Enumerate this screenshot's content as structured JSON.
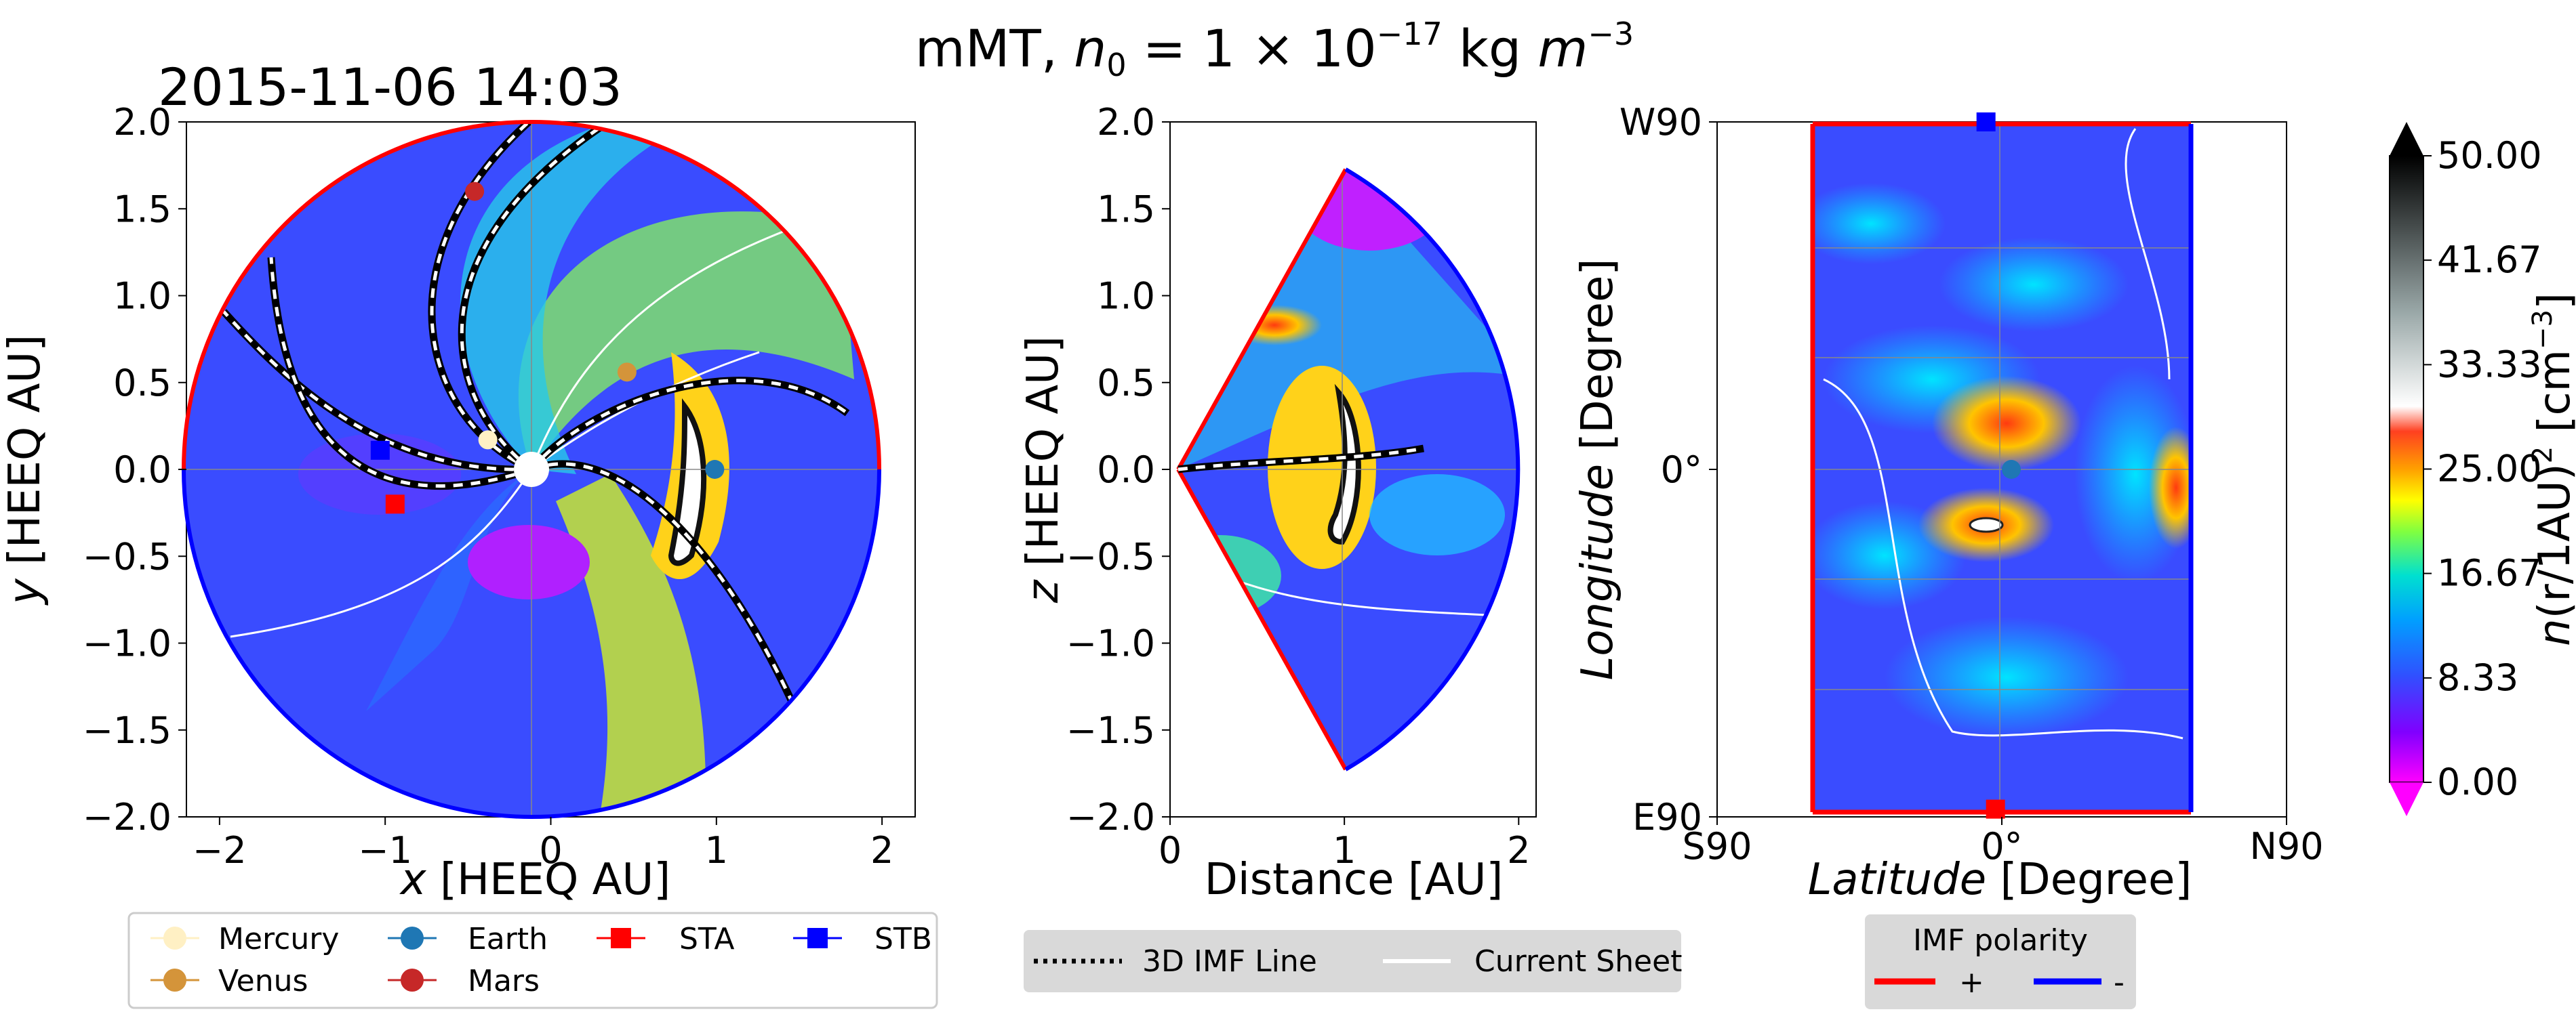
{
  "figure": {
    "title_prefix": "mMT,  ",
    "title_n": "n",
    "title_sub": "0",
    "title_eq": " = 1 × 10",
    "title_exp": "−17",
    "title_unit": " kg ",
    "title_m": "m",
    "title_mexp": "−3",
    "timestamp": "2015-11-06 14:03"
  },
  "colors": {
    "imf_positive": "#ff0000",
    "imf_negative": "#0000ff",
    "background_density": "#3a4cff",
    "mercury": "#fff0c4",
    "venus": "#d4943a",
    "earth": "#1f77b4",
    "mars": "#c62828",
    "sta": "#ff0000",
    "stb": "#0000ff"
  },
  "chart_data": [
    {
      "type": "contour",
      "name": "equatorial-plane",
      "xlabel_var": "x",
      "xlabel_unit": " [HEEQ AU]",
      "ylabel_var": "y",
      "ylabel_unit": " [HEEQ AU]",
      "xlim": [
        -2.2,
        2.2
      ],
      "ylim": [
        -2.0,
        2.0
      ],
      "xticks": [
        "−2",
        "−1",
        "0",
        "1",
        "2"
      ],
      "xtick_values": [
        -2,
        -1,
        0,
        1,
        2
      ],
      "yticks": [
        "2.0",
        "1.5",
        "1.0",
        "0.5",
        "0.0",
        "−0.5",
        "−1.0",
        "−1.5",
        "−2.0"
      ],
      "ytick_values": [
        2.0,
        1.5,
        1.0,
        0.5,
        0.0,
        -0.5,
        -1.0,
        -1.5,
        -2.0
      ],
      "domain_radius_au": 2.0,
      "bodies": [
        {
          "name": "Mercury",
          "x": -0.38,
          "y": 0.17
        },
        {
          "name": "Venus",
          "x": 0.46,
          "y": 0.56
        },
        {
          "name": "Earth",
          "x": 0.99,
          "y": 0.0
        },
        {
          "name": "Mars",
          "x": -0.46,
          "y": 1.6
        },
        {
          "name": "STA",
          "x": -0.94,
          "y": -0.2
        },
        {
          "name": "STB",
          "x": -1.03,
          "y": 0.11
        }
      ]
    },
    {
      "type": "contour",
      "name": "meridional-plane",
      "xlabel": "Distance [AU]",
      "ylabel_var": "z",
      "ylabel_unit": " [HEEQ AU]",
      "xlim": [
        0,
        2.1
      ],
      "ylim": [
        -2.0,
        2.0
      ],
      "xticks": [
        "0",
        "1",
        "2"
      ],
      "xtick_values": [
        0,
        1,
        2
      ],
      "yticks": [
        "2.0",
        "1.5",
        "1.0",
        "0.5",
        "0.0",
        "−0.5",
        "−1.0",
        "−1.5",
        "−2.0"
      ],
      "ytick_values": [
        2.0,
        1.5,
        1.0,
        0.5,
        0.0,
        -0.5,
        -1.0,
        -1.5,
        -2.0
      ],
      "wedge_half_angle_deg": 60
    },
    {
      "type": "contour",
      "name": "inner-boundary-map",
      "xlabel_var": "Latitude",
      "xlabel_unit": " [Degree]",
      "ylabel_var": "Longitude",
      "ylabel_unit": " [Degree]",
      "xlim": [
        -90,
        90
      ],
      "ylim": [
        -90,
        90
      ],
      "xticks": [
        "S90",
        "0°",
        "N90"
      ],
      "xtick_values": [
        -90,
        0,
        90
      ],
      "yticks": [
        "W90",
        "0°",
        "E90"
      ],
      "ytick_values": [
        90,
        0,
        -90
      ],
      "bodies": [
        {
          "name": "Earth",
          "lat": 3,
          "lon": 0
        },
        {
          "name": "STA",
          "lat": -2,
          "lon": -88
        },
        {
          "name": "STB",
          "lat": -5,
          "lon": 90
        }
      ]
    },
    {
      "type": "colorbar",
      "name": "density-colorbar",
      "label_prefix": "n",
      "label_main": "(r/1AU)",
      "label_sup": "2",
      "label_unit": "[cm",
      "label_unit_sup": "−3",
      "label_close": "]",
      "range": [
        0,
        50
      ],
      "ticks": [
        "50.00",
        "41.67",
        "33.33",
        "25.00",
        "16.67",
        "8.33",
        "0.00"
      ],
      "tick_values": [
        50,
        41.67,
        33.33,
        25.0,
        16.67,
        8.33,
        0
      ]
    }
  ],
  "legends": {
    "bodies": [
      {
        "label": "Mercury",
        "key": "mercury"
      },
      {
        "label": "Venus",
        "key": "venus"
      },
      {
        "label": "Earth",
        "key": "earth"
      },
      {
        "label": "Mars",
        "key": "mars"
      },
      {
        "label": "STA",
        "key": "sta"
      },
      {
        "label": "STB",
        "key": "stb"
      }
    ],
    "lines": [
      {
        "label": "3D IMF Line"
      },
      {
        "label": "Current Sheet"
      }
    ],
    "polarity": {
      "title": "IMF polarity",
      "positive": "+",
      "negative": "-"
    }
  }
}
